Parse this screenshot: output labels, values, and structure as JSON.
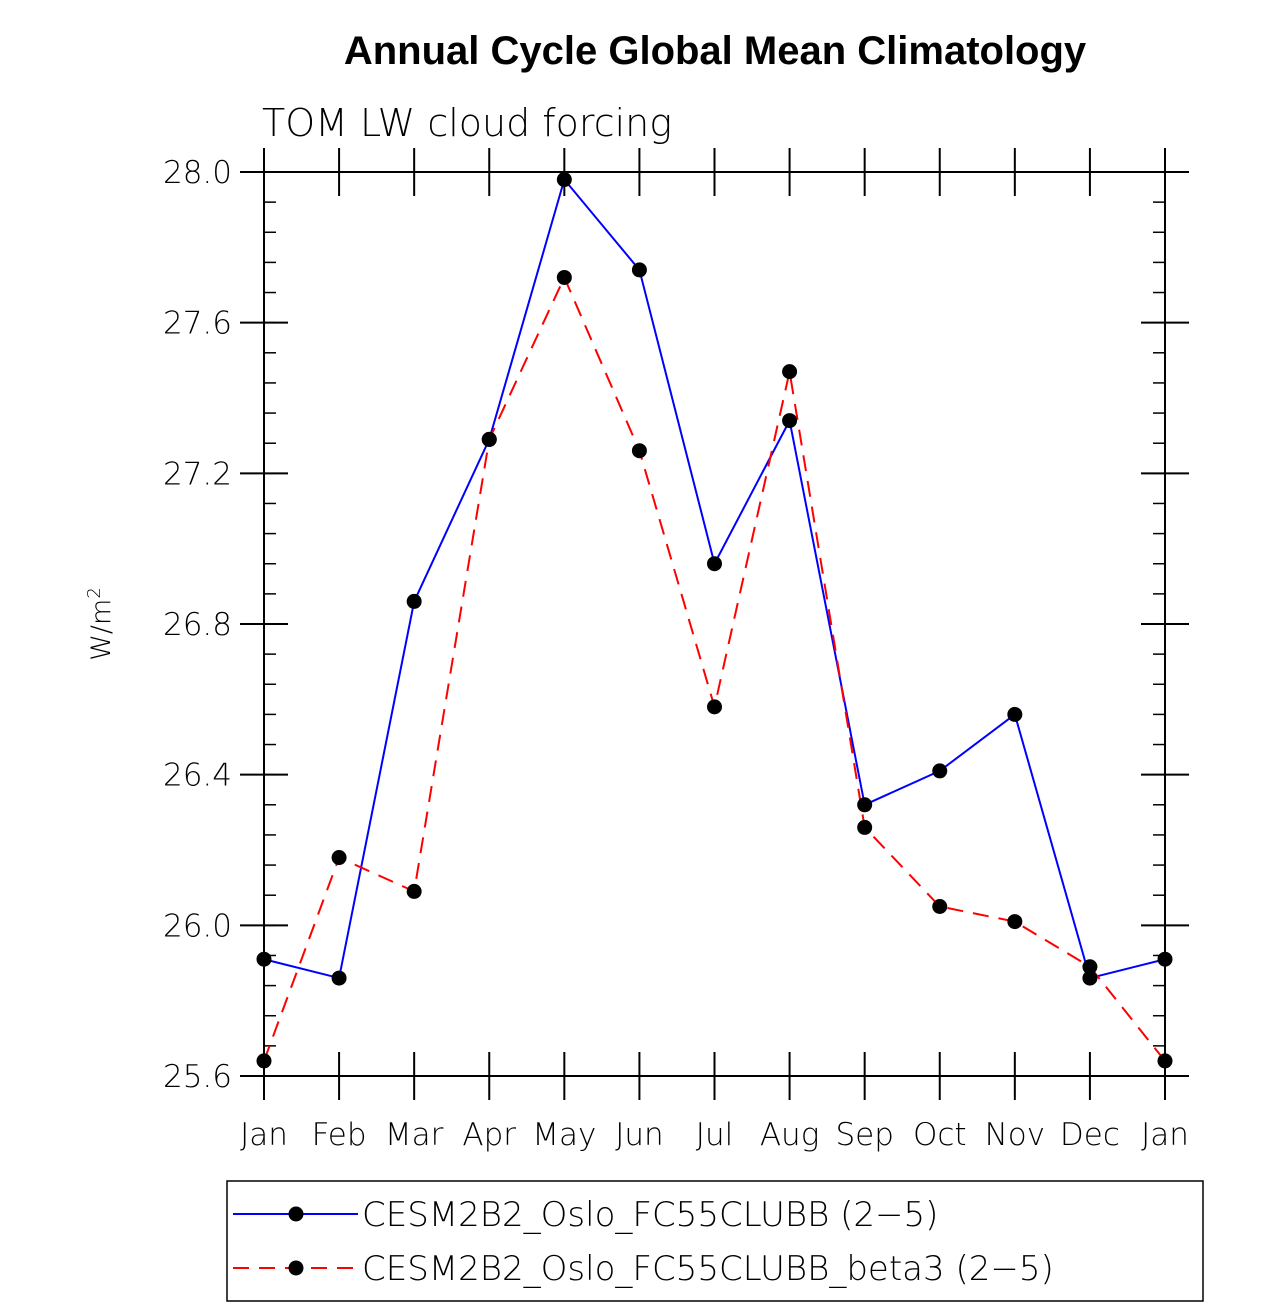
{
  "chart_data": {
    "type": "line",
    "title": "Annual Cycle Global Mean Climatology",
    "subtitle": "TOM LW cloud forcing",
    "ylabel": "W/m",
    "ylabel_sup": "2",
    "xlabel": "",
    "categories": [
      "Jan",
      "Feb",
      "Mar",
      "Apr",
      "May",
      "Jun",
      "Jul",
      "Aug",
      "Sep",
      "Oct",
      "Nov",
      "Dec",
      "Jan"
    ],
    "ylim": [
      25.6,
      28.0
    ],
    "yticks": [
      "25.6",
      "26.0",
      "26.4",
      "26.8",
      "27.2",
      "27.6",
      "28.0"
    ],
    "grid": false,
    "legend_position": "bottom",
    "series": [
      {
        "name": "CESM2B2_Oslo_FC55CLUBB (2−5)",
        "color": "#0000ff",
        "dash": "solid",
        "values": [
          25.91,
          25.86,
          26.86,
          27.29,
          27.98,
          27.74,
          26.96,
          27.34,
          26.32,
          26.41,
          26.56,
          25.86,
          25.91
        ]
      },
      {
        "name": "CESM2B2_Oslo_FC55CLUBB_beta3 (2−5)",
        "color": "#ff0000",
        "dash": "dashed",
        "values": [
          25.64,
          26.18,
          26.09,
          27.29,
          27.72,
          27.26,
          26.58,
          27.47,
          26.26,
          26.05,
          26.01,
          25.89,
          25.64
        ]
      }
    ],
    "marker_color": "#000000"
  }
}
